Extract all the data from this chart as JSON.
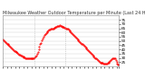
{
  "title": "Milwaukee Weather Outdoor Temperature per Minute (Last 24 Hours)",
  "background_color": "#ffffff",
  "plot_bg_color": "#ffffff",
  "line_color": "#ff0000",
  "grid_color": "#cccccc",
  "ylabel": "",
  "xlabel": "",
  "y_axis_side": "right",
  "ylim": [
    20,
    80
  ],
  "yticks": [
    25,
    30,
    35,
    40,
    45,
    50,
    55,
    60,
    65,
    70,
    75
  ],
  "vline_positions": [
    0.27,
    0.54
  ],
  "num_points": 144,
  "x_data": [
    0,
    1,
    2,
    3,
    4,
    5,
    6,
    7,
    8,
    9,
    10,
    11,
    12,
    13,
    14,
    15,
    16,
    17,
    18,
    19,
    20,
    21,
    22,
    23,
    24,
    25,
    26,
    27,
    28,
    29,
    30,
    31,
    32,
    33,
    34,
    35,
    36,
    37,
    38,
    39,
    40,
    41,
    42,
    43,
    44,
    45,
    46,
    47,
    48,
    49,
    50,
    51,
    52,
    53,
    54,
    55,
    56,
    57,
    58,
    59,
    60,
    61,
    62,
    63,
    64,
    65,
    66,
    67,
    68,
    69,
    70,
    71,
    72,
    73,
    74,
    75,
    76,
    77,
    78,
    79,
    80,
    81,
    82,
    83,
    84,
    85,
    86,
    87,
    88,
    89,
    90,
    91,
    92,
    93,
    94,
    95,
    96,
    97,
    98,
    99,
    100,
    101,
    102,
    103,
    104,
    105,
    106,
    107,
    108,
    109,
    110,
    111,
    112,
    113,
    114,
    115,
    116,
    117,
    118,
    119,
    120,
    121,
    122,
    123,
    124,
    125,
    126,
    127,
    128,
    129,
    130,
    131,
    132,
    133,
    134,
    135,
    136,
    137,
    138,
    139,
    140,
    141,
    142,
    143
  ],
  "y_data": [
    52,
    51,
    50,
    49,
    48,
    47,
    46,
    45,
    44,
    43,
    42,
    41,
    40,
    39,
    38,
    38,
    37,
    37,
    36,
    35,
    34,
    34,
    33,
    33,
    32,
    32,
    31,
    31,
    30,
    30,
    30,
    29,
    29,
    29,
    29,
    29,
    29,
    30,
    30,
    31,
    32,
    33,
    35,
    37,
    40,
    43,
    46,
    48,
    51,
    53,
    55,
    57,
    58,
    59,
    60,
    61,
    62,
    63,
    63,
    64,
    64,
    65,
    65,
    66,
    66,
    67,
    67,
    68,
    68,
    68,
    69,
    68,
    68,
    67,
    67,
    67,
    66,
    66,
    65,
    65,
    64,
    63,
    62,
    61,
    60,
    59,
    58,
    57,
    56,
    55,
    54,
    53,
    52,
    51,
    50,
    49,
    48,
    47,
    46,
    45,
    44,
    43,
    42,
    41,
    40,
    39,
    38,
    37,
    36,
    35,
    34,
    33,
    32,
    31,
    30,
    29,
    28,
    27,
    26,
    25,
    24,
    24,
    24,
    24,
    23,
    23,
    23,
    23,
    23,
    24,
    24,
    25,
    26,
    27,
    28,
    29,
    30,
    30,
    29,
    27,
    25,
    23,
    22,
    22
  ],
  "title_fontsize": 3.5,
  "tick_fontsize": 3.0,
  "marker": ".",
  "markersize": 1.0,
  "linewidth": 0.0,
  "x_tick_positions": [
    0,
    5,
    10,
    15,
    20,
    25,
    30,
    35,
    40,
    45,
    50,
    55,
    60,
    65,
    70,
    75,
    80,
    85,
    90,
    95,
    100,
    105,
    110,
    115,
    120,
    125,
    130,
    135,
    140,
    143
  ]
}
